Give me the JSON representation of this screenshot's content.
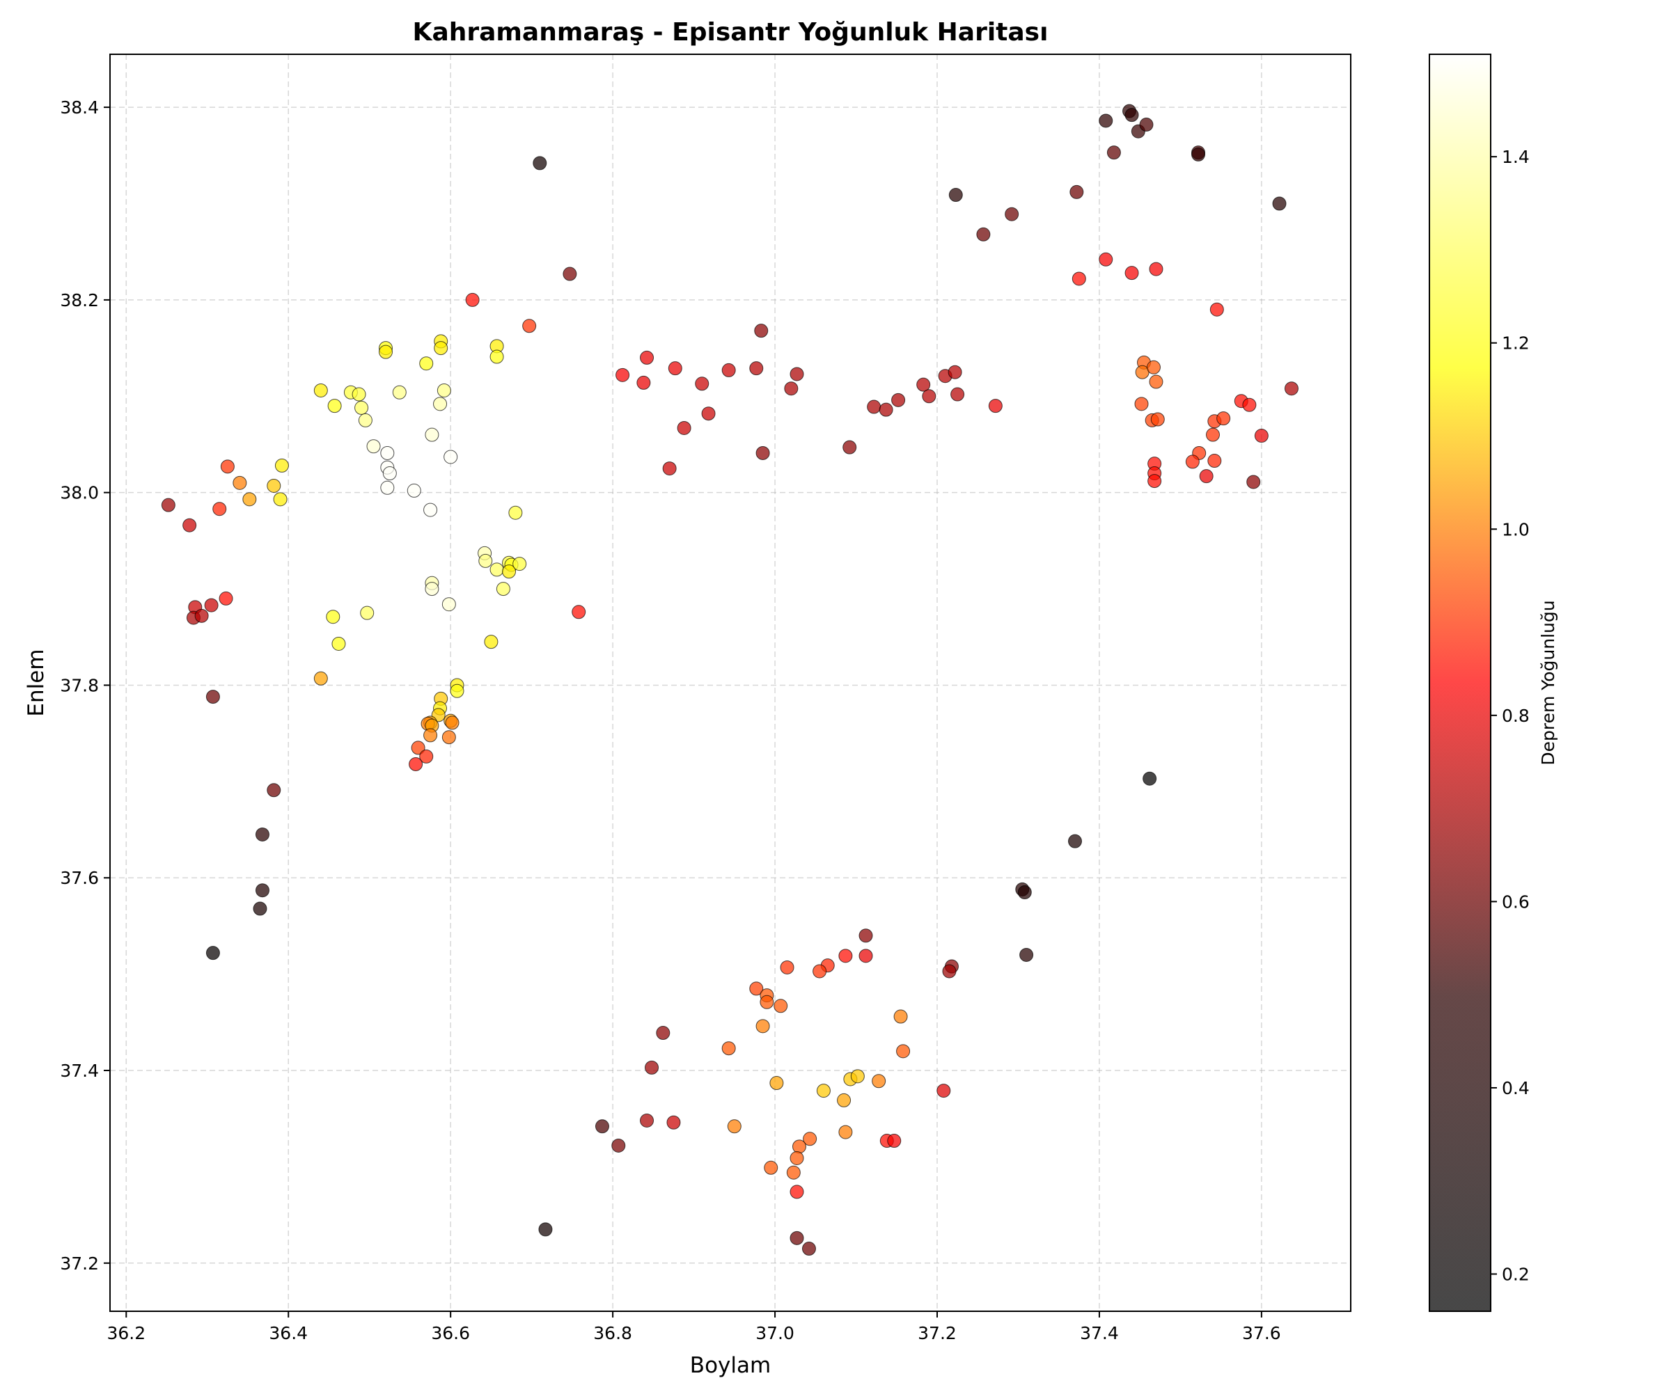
{
  "chart_data": {
    "type": "scatter",
    "title": "Kahramanmaraş - Episantr Yoğunluk Haritası",
    "xlabel": "Boylam",
    "ylabel": "Enlem",
    "xlim": [
      36.18,
      37.71
    ],
    "ylim": [
      37.15,
      38.455
    ],
    "xticks": [
      "36.2",
      "36.4",
      "36.6",
      "36.8",
      "37.0",
      "37.2",
      "37.4",
      "37.6"
    ],
    "yticks": [
      "37.2",
      "37.4",
      "37.6",
      "37.8",
      "38.0",
      "38.2",
      "38.4"
    ],
    "grid": true,
    "colorbar": {
      "label": "Deprem Yoğunluğu",
      "range": [
        0.16,
        1.51
      ],
      "ticks": [
        "0.2",
        "0.4",
        "0.6",
        "0.8",
        "1.0",
        "1.2",
        "1.4"
      ],
      "colormap": "hot",
      "stops": [
        "#000000",
        "#2a0000",
        "#ff0000",
        "#ffff00",
        "#ffffff"
      ]
    },
    "points": [
      [
        36.252,
        37.987,
        0.68
      ],
      [
        36.278,
        37.966,
        0.75
      ],
      [
        36.315,
        37.983,
        0.88
      ],
      [
        36.325,
        38.027,
        0.9
      ],
      [
        36.34,
        38.01,
        1.0
      ],
      [
        36.352,
        37.993,
        1.05
      ],
      [
        36.382,
        38.007,
        1.1
      ],
      [
        36.39,
        37.993,
        1.15
      ],
      [
        36.392,
        38.028,
        1.15
      ],
      [
        36.285,
        37.881,
        0.75
      ],
      [
        36.283,
        37.87,
        0.7
      ],
      [
        36.293,
        37.872,
        0.72
      ],
      [
        36.305,
        37.883,
        0.75
      ],
      [
        36.323,
        37.89,
        0.85
      ],
      [
        36.307,
        37.788,
        0.6
      ],
      [
        36.382,
        37.691,
        0.6
      ],
      [
        36.368,
        37.645,
        0.48
      ],
      [
        36.368,
        37.587,
        0.4
      ],
      [
        36.365,
        37.568,
        0.35
      ],
      [
        36.307,
        37.522,
        0.2
      ],
      [
        36.44,
        38.106,
        1.15
      ],
      [
        36.457,
        38.09,
        1.2
      ],
      [
        36.477,
        38.104,
        1.25
      ],
      [
        36.487,
        38.102,
        1.25
      ],
      [
        36.49,
        38.088,
        1.3
      ],
      [
        36.495,
        38.075,
        1.35
      ],
      [
        36.505,
        38.048,
        1.45
      ],
      [
        36.52,
        38.15,
        1.18
      ],
      [
        36.52,
        38.146,
        1.15
      ],
      [
        36.537,
        38.104,
        1.35
      ],
      [
        36.522,
        38.041,
        1.5
      ],
      [
        36.522,
        38.026,
        1.5
      ],
      [
        36.525,
        38.02,
        1.5
      ],
      [
        36.522,
        38.005,
        1.5
      ],
      [
        36.555,
        38.002,
        1.5
      ],
      [
        36.575,
        37.982,
        1.5
      ],
      [
        36.577,
        38.06,
        1.45
      ],
      [
        36.587,
        38.092,
        1.4
      ],
      [
        36.592,
        38.106,
        1.35
      ],
      [
        36.57,
        38.134,
        1.2
      ],
      [
        36.588,
        38.157,
        1.15
      ],
      [
        36.588,
        38.15,
        1.15
      ],
      [
        36.6,
        38.037,
        1.5
      ],
      [
        36.577,
        37.906,
        1.4
      ],
      [
        36.577,
        37.9,
        1.45
      ],
      [
        36.598,
        37.884,
        1.45
      ],
      [
        36.455,
        37.871,
        1.2
      ],
      [
        36.497,
        37.875,
        1.3
      ],
      [
        36.462,
        37.843,
        1.2
      ],
      [
        36.44,
        37.807,
        1.05
      ],
      [
        36.627,
        38.2,
        0.85
      ],
      [
        36.657,
        38.152,
        1.15
      ],
      [
        36.657,
        38.141,
        1.2
      ],
      [
        36.697,
        38.173,
        0.9
      ],
      [
        36.642,
        37.937,
        1.4
      ],
      [
        36.643,
        37.929,
        1.35
      ],
      [
        36.657,
        37.92,
        1.3
      ],
      [
        36.672,
        37.927,
        1.25
      ],
      [
        36.675,
        37.925,
        1.2
      ],
      [
        36.672,
        37.918,
        1.15
      ],
      [
        36.685,
        37.926,
        1.25
      ],
      [
        36.665,
        37.9,
        1.3
      ],
      [
        36.68,
        37.979,
        1.25
      ],
      [
        36.65,
        37.845,
        1.15
      ],
      [
        36.71,
        38.342,
        0.3
      ],
      [
        36.747,
        38.227,
        0.62
      ],
      [
        36.758,
        37.876,
        0.85
      ],
      [
        36.608,
        37.8,
        1.15
      ],
      [
        36.608,
        37.794,
        1.2
      ],
      [
        36.588,
        37.786,
        1.1
      ],
      [
        36.587,
        37.776,
        1.15
      ],
      [
        36.585,
        37.769,
        1.1
      ],
      [
        36.575,
        37.761,
        1.05
      ],
      [
        36.572,
        37.76,
        1.0
      ],
      [
        36.577,
        37.758,
        1.05
      ],
      [
        36.6,
        37.763,
        1.05
      ],
      [
        36.602,
        37.761,
        1.0
      ],
      [
        36.575,
        37.748,
        1.0
      ],
      [
        36.598,
        37.746,
        0.98
      ],
      [
        36.56,
        37.735,
        0.92
      ],
      [
        36.57,
        37.726,
        0.88
      ],
      [
        36.557,
        37.718,
        0.85
      ],
      [
        36.812,
        38.122,
        0.82
      ],
      [
        36.838,
        38.114,
        0.8
      ],
      [
        36.842,
        38.14,
        0.8
      ],
      [
        36.877,
        38.129,
        0.8
      ],
      [
        36.87,
        38.025,
        0.75
      ],
      [
        36.888,
        38.067,
        0.75
      ],
      [
        36.91,
        38.113,
        0.75
      ],
      [
        36.918,
        38.082,
        0.75
      ],
      [
        36.943,
        38.127,
        0.75
      ],
      [
        36.977,
        38.129,
        0.72
      ],
      [
        36.983,
        38.168,
        0.65
      ],
      [
        36.985,
        38.041,
        0.65
      ],
      [
        37.02,
        38.108,
        0.7
      ],
      [
        37.027,
        38.123,
        0.7
      ],
      [
        37.092,
        38.047,
        0.65
      ],
      [
        37.122,
        38.089,
        0.7
      ],
      [
        37.137,
        38.086,
        0.7
      ],
      [
        37.152,
        38.096,
        0.7
      ],
      [
        37.183,
        38.112,
        0.72
      ],
      [
        37.19,
        38.1,
        0.72
      ],
      [
        37.21,
        38.121,
        0.72
      ],
      [
        37.222,
        38.125,
        0.72
      ],
      [
        37.225,
        38.102,
        0.72
      ],
      [
        37.272,
        38.09,
        0.8
      ],
      [
        37.223,
        38.309,
        0.45
      ],
      [
        37.257,
        38.268,
        0.6
      ],
      [
        37.292,
        38.289,
        0.6
      ],
      [
        37.372,
        38.312,
        0.6
      ],
      [
        37.408,
        38.386,
        0.5
      ],
      [
        37.418,
        38.353,
        0.58
      ],
      [
        37.437,
        38.396,
        0.5
      ],
      [
        37.44,
        38.392,
        0.5
      ],
      [
        37.448,
        38.375,
        0.52
      ],
      [
        37.458,
        38.382,
        0.55
      ],
      [
        37.522,
        38.353,
        0.55
      ],
      [
        37.522,
        38.351,
        0.5
      ],
      [
        37.622,
        38.3,
        0.45
      ],
      [
        37.375,
        38.222,
        0.85
      ],
      [
        37.408,
        38.242,
        0.82
      ],
      [
        37.44,
        38.228,
        0.82
      ],
      [
        37.47,
        38.232,
        0.82
      ],
      [
        37.545,
        38.19,
        0.85
      ],
      [
        37.455,
        38.135,
        0.95
      ],
      [
        37.453,
        38.125,
        0.98
      ],
      [
        37.467,
        38.13,
        0.95
      ],
      [
        37.47,
        38.115,
        0.95
      ],
      [
        37.452,
        38.092,
        0.92
      ],
      [
        37.465,
        38.075,
        0.92
      ],
      [
        37.472,
        38.076,
        0.92
      ],
      [
        37.542,
        38.074,
        0.9
      ],
      [
        37.553,
        38.077,
        0.9
      ],
      [
        37.575,
        38.095,
        0.85
      ],
      [
        37.585,
        38.091,
        0.85
      ],
      [
        37.637,
        38.108,
        0.7
      ],
      [
        37.6,
        38.059,
        0.8
      ],
      [
        37.54,
        38.06,
        0.9
      ],
      [
        37.523,
        38.041,
        0.9
      ],
      [
        37.515,
        38.032,
        0.88
      ],
      [
        37.542,
        38.033,
        0.88
      ],
      [
        37.468,
        38.03,
        0.85
      ],
      [
        37.468,
        38.02,
        0.85
      ],
      [
        37.468,
        38.012,
        0.85
      ],
      [
        37.532,
        38.017,
        0.8
      ],
      [
        37.59,
        38.011,
        0.65
      ],
      [
        37.462,
        37.703,
        0.18
      ],
      [
        37.37,
        37.638,
        0.35
      ],
      [
        37.305,
        37.588,
        0.45
      ],
      [
        37.308,
        37.585,
        0.42
      ],
      [
        37.31,
        37.52,
        0.45
      ],
      [
        37.112,
        37.54,
        0.65
      ],
      [
        37.112,
        37.519,
        0.8
      ],
      [
        37.087,
        37.519,
        0.85
      ],
      [
        37.065,
        37.509,
        0.88
      ],
      [
        37.055,
        37.503,
        0.9
      ],
      [
        37.015,
        37.507,
        0.9
      ],
      [
        36.977,
        37.485,
        0.92
      ],
      [
        36.99,
        37.478,
        0.95
      ],
      [
        36.99,
        37.471,
        0.95
      ],
      [
        37.007,
        37.467,
        0.95
      ],
      [
        36.985,
        37.446,
        1.0
      ],
      [
        37.155,
        37.456,
        1.0
      ],
      [
        37.218,
        37.508,
        0.65
      ],
      [
        37.215,
        37.503,
        0.68
      ],
      [
        36.862,
        37.439,
        0.65
      ],
      [
        36.848,
        37.403,
        0.68
      ],
      [
        36.943,
        37.423,
        0.95
      ],
      [
        37.158,
        37.42,
        0.95
      ],
      [
        37.002,
        37.387,
        1.05
      ],
      [
        37.06,
        37.379,
        1.1
      ],
      [
        37.093,
        37.391,
        1.1
      ],
      [
        37.102,
        37.394,
        1.1
      ],
      [
        37.085,
        37.369,
        1.05
      ],
      [
        37.128,
        37.389,
        1.0
      ],
      [
        37.208,
        37.379,
        0.78
      ],
      [
        36.787,
        37.342,
        0.55
      ],
      [
        36.842,
        37.348,
        0.7
      ],
      [
        36.875,
        37.346,
        0.75
      ],
      [
        36.807,
        37.322,
        0.62
      ],
      [
        36.95,
        37.342,
        1.0
      ],
      [
        37.087,
        37.336,
        1.0
      ],
      [
        37.043,
        37.329,
        0.95
      ],
      [
        37.138,
        37.327,
        0.85
      ],
      [
        37.147,
        37.327,
        0.82
      ],
      [
        37.03,
        37.321,
        0.95
      ],
      [
        37.027,
        37.309,
        0.95
      ],
      [
        36.995,
        37.299,
        0.95
      ],
      [
        37.023,
        37.294,
        0.95
      ],
      [
        37.027,
        37.274,
        0.85
      ],
      [
        37.027,
        37.226,
        0.6
      ],
      [
        37.042,
        37.215,
        0.6
      ],
      [
        36.717,
        37.235,
        0.3
      ]
    ]
  }
}
